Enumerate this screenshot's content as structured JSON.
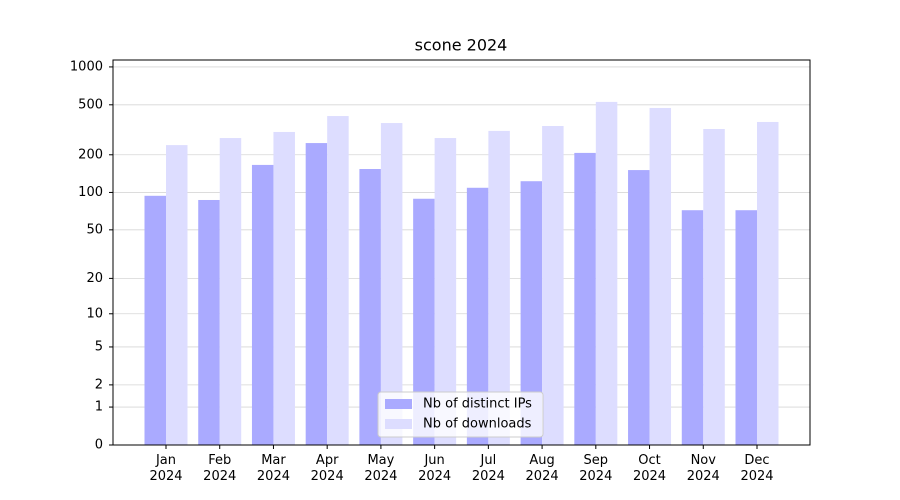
{
  "chart_data": {
    "type": "bar",
    "title": "scone 2024",
    "scale": "log1p",
    "grid": true,
    "legend": "lower center",
    "categories": [
      "Jan\n2024",
      "Feb\n2024",
      "Mar\n2024",
      "Apr\n2024",
      "May\n2024",
      "Jun\n2024",
      "Jul\n2024",
      "Aug\n2024",
      "Sep\n2024",
      "Oct\n2024",
      "Nov\n2024",
      "Dec\n2024"
    ],
    "series": [
      {
        "name": "Nb of distinct IPs",
        "color": "#aaaaff",
        "values": [
          94,
          87,
          166,
          248,
          154,
          89,
          109,
          123,
          207,
          151,
          72,
          72
        ]
      },
      {
        "name": "Nb of downloads",
        "color": "#ddddff",
        "values": [
          239,
          272,
          304,
          407,
          358,
          272,
          310,
          339,
          527,
          472,
          321,
          365
        ]
      }
    ],
    "ylim": [
      0,
      1135
    ],
    "yticks": [
      0,
      1,
      2,
      5,
      10,
      20,
      50,
      100,
      200,
      500,
      1000
    ]
  }
}
